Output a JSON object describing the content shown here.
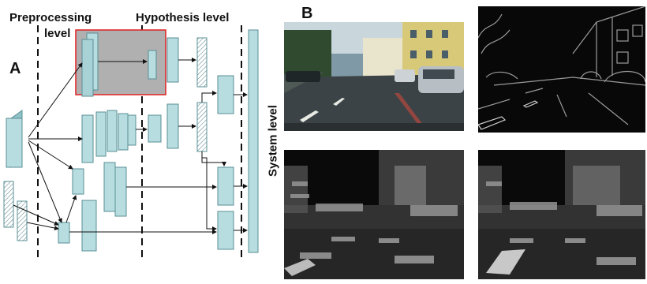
{
  "panel_a": {
    "letter": "A",
    "levels": {
      "preprocessing_line1": "Preprocessing",
      "preprocessing_line2": "level",
      "hypothesis": "Hypothesis level",
      "system": "System level"
    }
  },
  "panel_b": {
    "letter": "B",
    "images": [
      {
        "name": "street-photo",
        "kind": "color street scene"
      },
      {
        "name": "edge-image",
        "kind": "edge / gradient response"
      },
      {
        "name": "depth-map-left",
        "kind": "disparity / depth rendering"
      },
      {
        "name": "depth-map-right",
        "kind": "disparity / depth rendering"
      }
    ]
  },
  "colors": {
    "block_fill": "#b7dde0",
    "block_stroke": "#5a8f95",
    "highlight_fill": "#b0b0b0",
    "highlight_stroke": "#e02020"
  }
}
